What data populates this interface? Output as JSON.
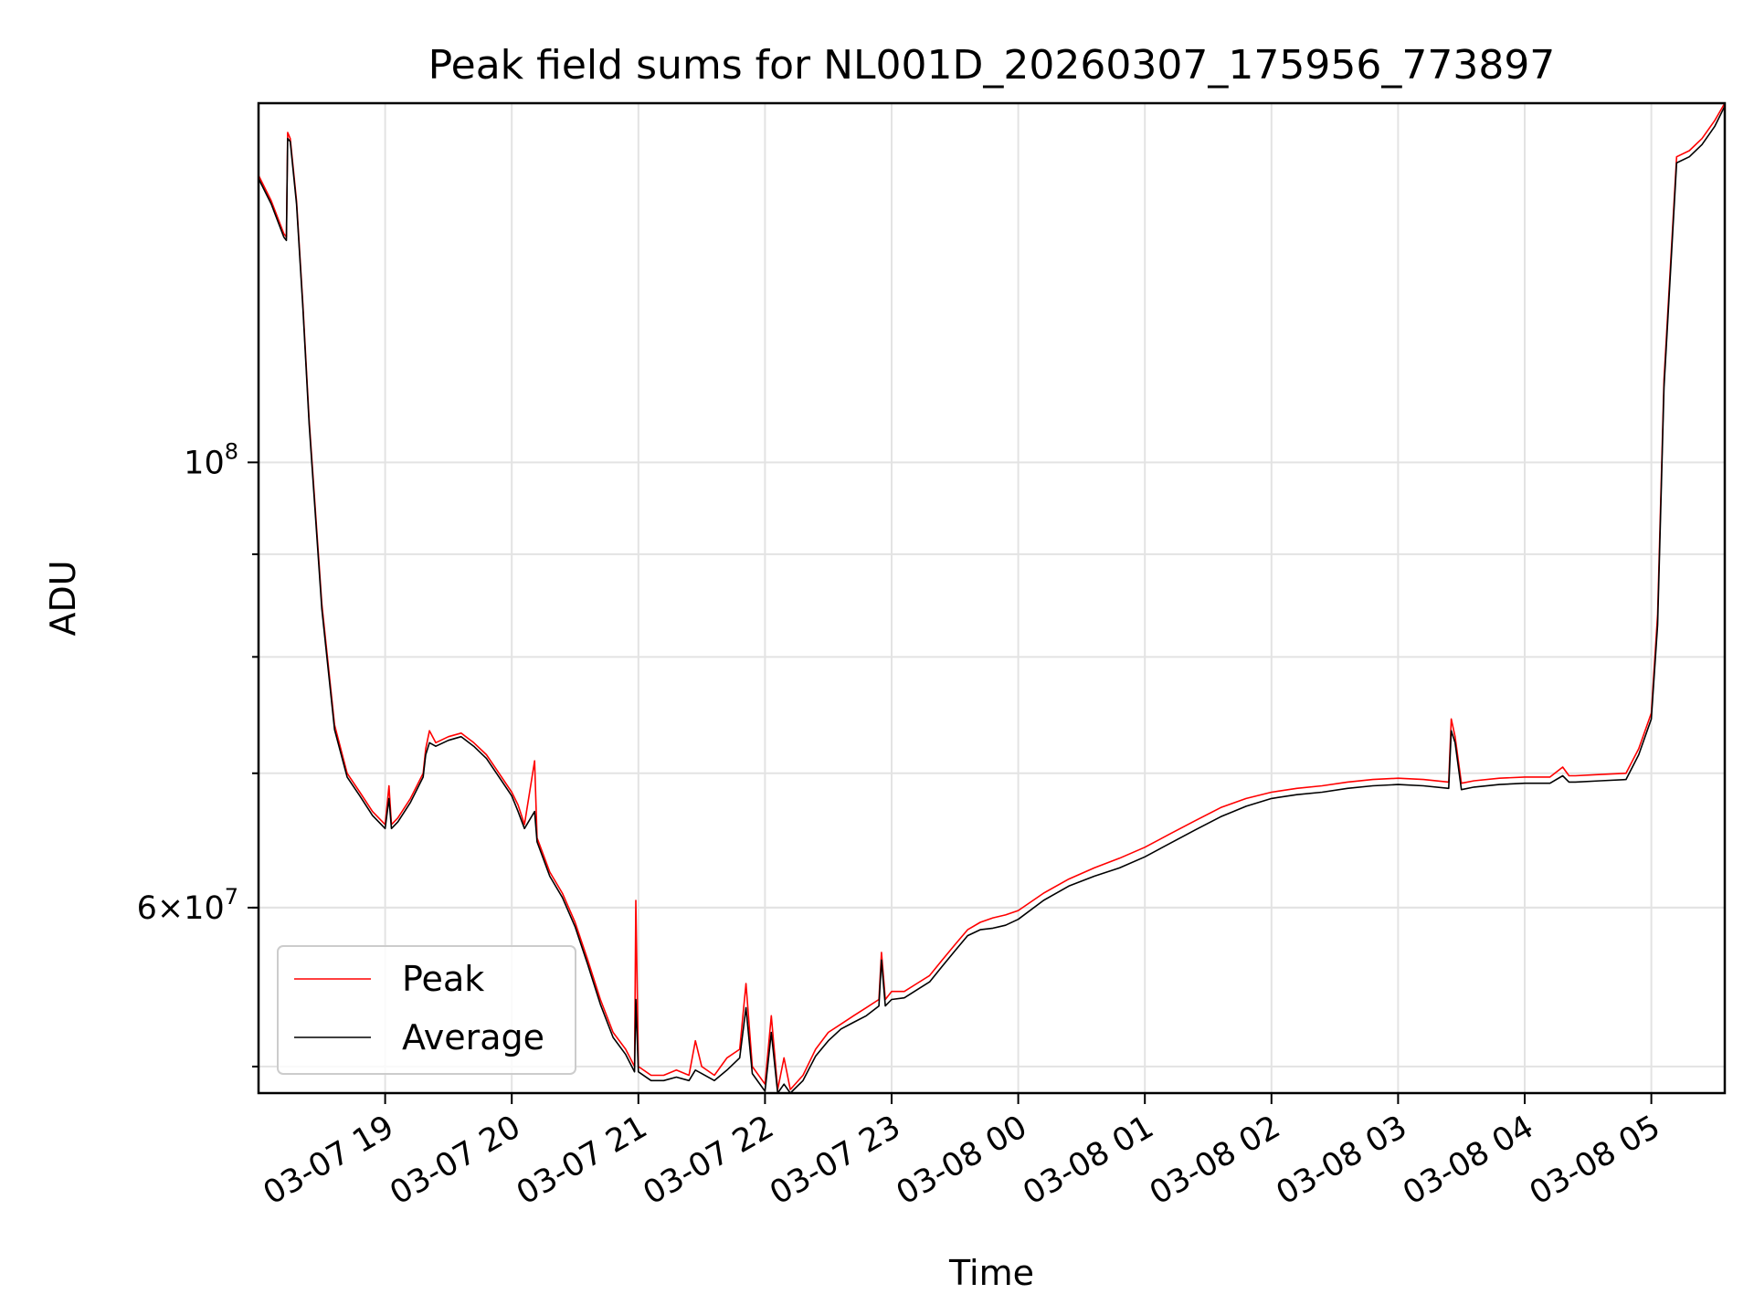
{
  "chart_data": {
    "type": "line",
    "title": "Peak field sums for NL001D_20260307_175956_773897",
    "xlabel": "Time",
    "ylabel": "ADU",
    "yscale": "log",
    "grid": true,
    "legend_position": "lower-left",
    "x_units": "hours since 2026-03-07 18:00",
    "xlim": [
      0.0,
      11.58
    ],
    "ylim": [
      48500000,
      151000000
    ],
    "x_ticks": [
      {
        "value": 1,
        "label": "03-07 19"
      },
      {
        "value": 2,
        "label": "03-07 20"
      },
      {
        "value": 3,
        "label": "03-07 21"
      },
      {
        "value": 4,
        "label": "03-07 22"
      },
      {
        "value": 5,
        "label": "03-07 23"
      },
      {
        "value": 6,
        "label": "03-08 00"
      },
      {
        "value": 7,
        "label": "03-08 01"
      },
      {
        "value": 8,
        "label": "03-08 02"
      },
      {
        "value": 9,
        "label": "03-08 03"
      },
      {
        "value": 10,
        "label": "03-08 04"
      },
      {
        "value": 11,
        "label": "03-08 05"
      }
    ],
    "y_major_ticks": [
      {
        "value": 60000000,
        "base": "6",
        "exp": "7"
      },
      {
        "value": 100000000,
        "base": "",
        "exp": "8"
      }
    ],
    "y_minor_ticks": [
      50000000,
      60000000,
      70000000,
      80000000,
      90000000
    ],
    "series": [
      {
        "name": "Peak",
        "color": "#ff0000",
        "x": [
          0.0,
          0.1,
          0.2,
          0.22,
          0.23,
          0.25,
          0.3,
          0.35,
          0.4,
          0.5,
          0.6,
          0.7,
          0.8,
          0.9,
          1.0,
          1.03,
          1.05,
          1.1,
          1.2,
          1.3,
          1.32,
          1.35,
          1.4,
          1.5,
          1.6,
          1.7,
          1.8,
          1.9,
          2.0,
          2.05,
          2.1,
          2.18,
          2.2,
          2.3,
          2.4,
          2.5,
          2.6,
          2.7,
          2.8,
          2.9,
          2.97,
          2.98,
          3.0,
          3.1,
          3.2,
          3.3,
          3.4,
          3.45,
          3.5,
          3.6,
          3.7,
          3.8,
          3.85,
          3.9,
          4.0,
          4.05,
          4.1,
          4.15,
          4.2,
          4.3,
          4.4,
          4.5,
          4.6,
          4.7,
          4.8,
          4.9,
          4.92,
          4.95,
          5.0,
          5.1,
          5.2,
          5.3,
          5.4,
          5.5,
          5.6,
          5.7,
          5.8,
          5.9,
          6.0,
          6.2,
          6.4,
          6.6,
          6.8,
          7.0,
          7.2,
          7.4,
          7.6,
          7.8,
          8.0,
          8.2,
          8.4,
          8.6,
          8.8,
          9.0,
          9.2,
          9.4,
          9.42,
          9.45,
          9.5,
          9.6,
          9.8,
          10.0,
          10.2,
          10.3,
          10.35,
          10.4,
          10.6,
          10.8,
          10.9,
          11.0,
          11.05,
          11.1,
          11.2,
          11.3,
          11.4,
          11.5,
          11.58
        ],
        "y": [
          139000000,
          135000000,
          130000000,
          129500000,
          146000000,
          145000000,
          135000000,
          120000000,
          105000000,
          85000000,
          74000000,
          70000000,
          68500000,
          67000000,
          66000000,
          69000000,
          66000000,
          66500000,
          68000000,
          70000000,
          72000000,
          73500000,
          72500000,
          73000000,
          73300000,
          72500000,
          71500000,
          70000000,
          68500000,
          67500000,
          66000000,
          71000000,
          65000000,
          62500000,
          61000000,
          59000000,
          56500000,
          54000000,
          52000000,
          51000000,
          50000000,
          60500000,
          50000000,
          49500000,
          49500000,
          49800000,
          49500000,
          51500000,
          50000000,
          49500000,
          50500000,
          51000000,
          55000000,
          50000000,
          49000000,
          53000000,
          48700000,
          50500000,
          48700000,
          49500000,
          51000000,
          52000000,
          52500000,
          53000000,
          53500000,
          54000000,
          57000000,
          54000000,
          54500000,
          54500000,
          55000000,
          55500000,
          56500000,
          57500000,
          58500000,
          59000000,
          59300000,
          59500000,
          59800000,
          61000000,
          62000000,
          62800000,
          63500000,
          64300000,
          65300000,
          66300000,
          67300000,
          68000000,
          68500000,
          68800000,
          69000000,
          69300000,
          69500000,
          69600000,
          69500000,
          69300000,
          74500000,
          73000000,
          69200000,
          69400000,
          69600000,
          69700000,
          69700000,
          70500000,
          69800000,
          69800000,
          69900000,
          70000000,
          72000000,
          75000000,
          84000000,
          110000000,
          142000000,
          143000000,
          145000000,
          148000000,
          151000000
        ]
      },
      {
        "name": "Average",
        "color": "#000000",
        "x": [
          0.0,
          0.1,
          0.2,
          0.22,
          0.23,
          0.25,
          0.3,
          0.35,
          0.4,
          0.5,
          0.6,
          0.7,
          0.8,
          0.9,
          1.0,
          1.03,
          1.05,
          1.1,
          1.2,
          1.3,
          1.32,
          1.35,
          1.4,
          1.5,
          1.6,
          1.7,
          1.8,
          1.9,
          2.0,
          2.05,
          2.1,
          2.18,
          2.2,
          2.3,
          2.4,
          2.5,
          2.6,
          2.7,
          2.8,
          2.9,
          2.97,
          2.98,
          3.0,
          3.1,
          3.2,
          3.3,
          3.4,
          3.45,
          3.5,
          3.6,
          3.7,
          3.8,
          3.85,
          3.9,
          4.0,
          4.05,
          4.1,
          4.15,
          4.2,
          4.3,
          4.4,
          4.5,
          4.6,
          4.7,
          4.8,
          4.9,
          4.92,
          4.95,
          5.0,
          5.1,
          5.2,
          5.3,
          5.4,
          5.5,
          5.6,
          5.7,
          5.8,
          5.9,
          6.0,
          6.2,
          6.4,
          6.6,
          6.8,
          7.0,
          7.2,
          7.4,
          7.6,
          7.8,
          8.0,
          8.2,
          8.4,
          8.6,
          8.8,
          9.0,
          9.2,
          9.4,
          9.42,
          9.45,
          9.5,
          9.6,
          9.8,
          10.0,
          10.2,
          10.3,
          10.35,
          10.4,
          10.6,
          10.8,
          10.9,
          11.0,
          11.05,
          11.1,
          11.2,
          11.3,
          11.4,
          11.5,
          11.58
        ],
        "y": [
          138500000,
          134500000,
          129500000,
          129000000,
          145000000,
          144500000,
          134500000,
          119500000,
          104500000,
          84500000,
          73600000,
          69700000,
          68200000,
          66700000,
          65700000,
          68000000,
          65700000,
          66200000,
          67700000,
          69700000,
          71500000,
          72500000,
          72200000,
          72700000,
          73000000,
          72200000,
          71200000,
          69700000,
          68200000,
          67000000,
          65700000,
          67000000,
          64700000,
          62200000,
          60700000,
          58700000,
          56200000,
          53700000,
          51700000,
          50700000,
          49700000,
          54000000,
          49700000,
          49200000,
          49200000,
          49400000,
          49200000,
          49800000,
          49600000,
          49200000,
          49800000,
          50500000,
          53500000,
          49600000,
          48600000,
          52000000,
          48500000,
          49000000,
          48500000,
          49200000,
          50600000,
          51500000,
          52200000,
          52600000,
          53000000,
          53600000,
          56500000,
          53600000,
          54000000,
          54100000,
          54600000,
          55100000,
          56100000,
          57100000,
          58100000,
          58500000,
          58600000,
          58800000,
          59200000,
          60500000,
          61500000,
          62200000,
          62800000,
          63600000,
          64600000,
          65600000,
          66600000,
          67400000,
          68000000,
          68300000,
          68500000,
          68800000,
          69000000,
          69100000,
          69000000,
          68800000,
          73500000,
          72500000,
          68700000,
          68900000,
          69100000,
          69200000,
          69200000,
          69800000,
          69300000,
          69300000,
          69400000,
          69500000,
          71500000,
          74500000,
          83000000,
          109000000,
          141000000,
          142000000,
          144000000,
          147000000,
          150500000
        ]
      }
    ]
  }
}
